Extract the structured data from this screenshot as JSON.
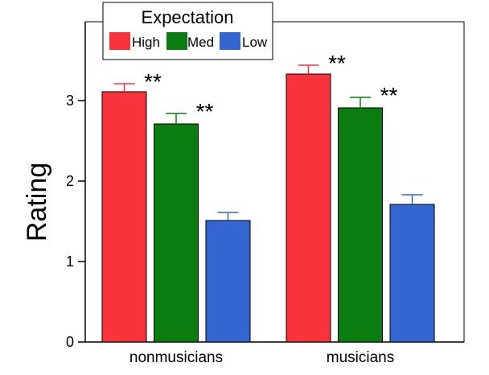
{
  "chart_data": {
    "type": "bar",
    "categories": [
      "nonmusicians",
      "musicians"
    ],
    "series": [
      {
        "name": "High",
        "color": "#f8333b",
        "values": [
          3.11,
          3.33
        ],
        "errors": [
          0.1,
          0.11
        ]
      },
      {
        "name": "Med",
        "color": "#0b7d10",
        "values": [
          2.71,
          2.91
        ],
        "errors": [
          0.13,
          0.13
        ]
      },
      {
        "name": "Low",
        "color": "#3466cf",
        "values": [
          1.51,
          1.71
        ],
        "errors": [
          0.1,
          0.12
        ]
      }
    ],
    "title": "",
    "xlabel": "",
    "ylabel": "Rating",
    "ylim": [
      0,
      4
    ],
    "yticks": [
      0,
      1,
      2,
      3
    ],
    "grid": false,
    "legend": {
      "title": "Expectation",
      "placement": "top-left",
      "entries": [
        "High",
        "Med",
        "Low"
      ]
    },
    "annotations": [
      {
        "category": "nonmusicians",
        "series": "High",
        "text": "**"
      },
      {
        "category": "nonmusicians",
        "series": "Med",
        "text": "**"
      },
      {
        "category": "musicians",
        "series": "High",
        "text": "**"
      },
      {
        "category": "musicians",
        "series": "Med",
        "text": "**"
      }
    ]
  }
}
